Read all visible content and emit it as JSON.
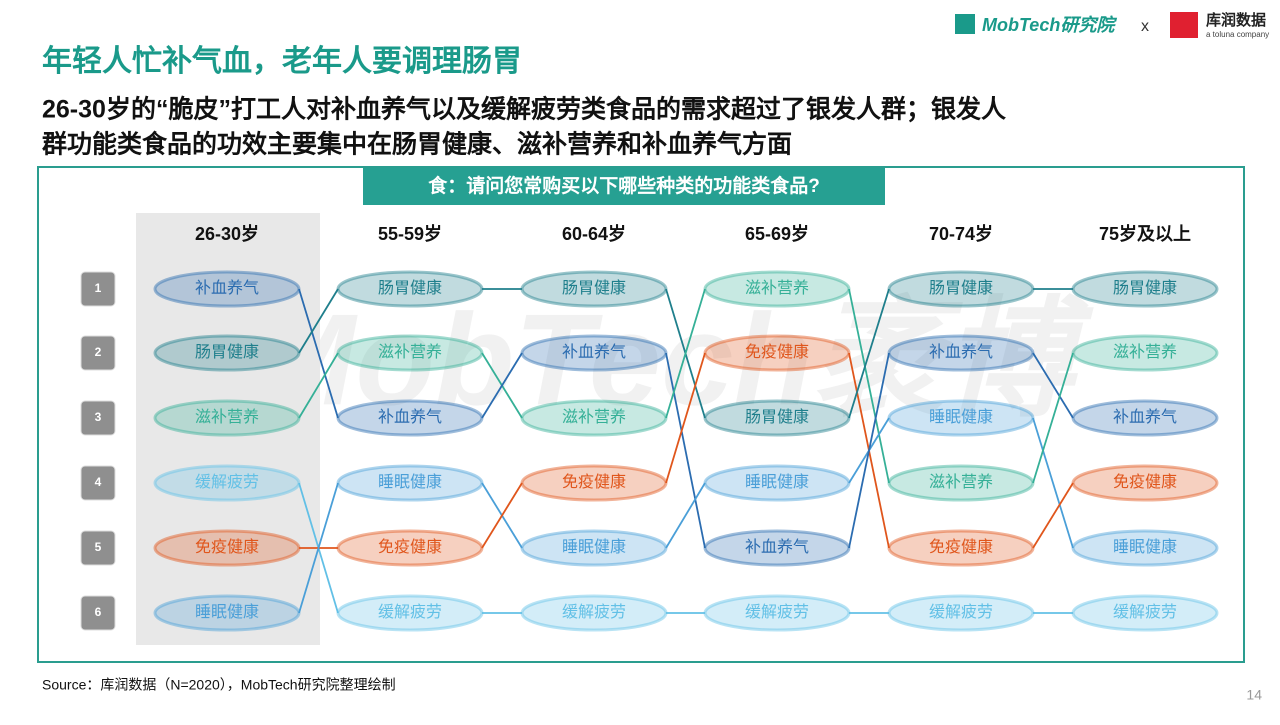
{
  "header": {
    "logo": "MobTech研究院",
    "separator": "x",
    "partner": "库润数据",
    "partner_sub": "a toluna company"
  },
  "title": "年轻人忙补气血，老年人要调理肠胃",
  "subtitle": [
    "26-30岁的“脆皮”打工人对补血养气以及缓解疲劳类食品的需求超过了银发人群；银发人",
    "群功能类食品的功效主要集中在肠胃健康、滋补营养和补血养气方面"
  ],
  "question": "食：请问您常购买以下哪些种类的功能类食品?",
  "watermark": "MobTech袤博",
  "ranks": [
    "1",
    "2",
    "3",
    "4",
    "5",
    "6"
  ],
  "columns": [
    {
      "label": "26-30岁",
      "items": [
        "补血养气",
        "肠胃健康",
        "滋补营养",
        "缓解疲劳",
        "免疫健康",
        "睡眠健康"
      ]
    },
    {
      "label": "55-59岁",
      "items": [
        "肠胃健康",
        "滋补营养",
        "补血养气",
        "睡眠健康",
        "免疫健康",
        "缓解疲劳"
      ]
    },
    {
      "label": "60-64岁",
      "items": [
        "肠胃健康",
        "补血养气",
        "滋补营养",
        "免疫健康",
        "睡眠健康",
        "缓解疲劳"
      ]
    },
    {
      "label": "65-69岁",
      "items": [
        "滋补营养",
        "免疫健康",
        "肠胃健康",
        "睡眠健康",
        "补血养气",
        "缓解疲劳"
      ]
    },
    {
      "label": "70-74岁",
      "items": [
        "肠胃健康",
        "补血养气",
        "睡眠健康",
        "滋补营养",
        "免疫健康",
        "缓解疲劳"
      ]
    },
    {
      "label": "75岁及以上",
      "items": [
        "肠胃健康",
        "滋补营养",
        "补血养气",
        "免疫健康",
        "睡眠健康",
        "缓解疲劳"
      ]
    }
  ],
  "colors": {
    "补血养气": "#2b6cb0",
    "肠胃健康": "#1f7f8c",
    "滋补营养": "#35b097",
    "缓解疲劳": "#62c0e6",
    "免疫健康": "#e0561c",
    "睡眠健康": "#4a9fd8"
  },
  "source": "Source：库润数据（N=2020），MobTech研究院整理绘制",
  "page_number": "14"
}
